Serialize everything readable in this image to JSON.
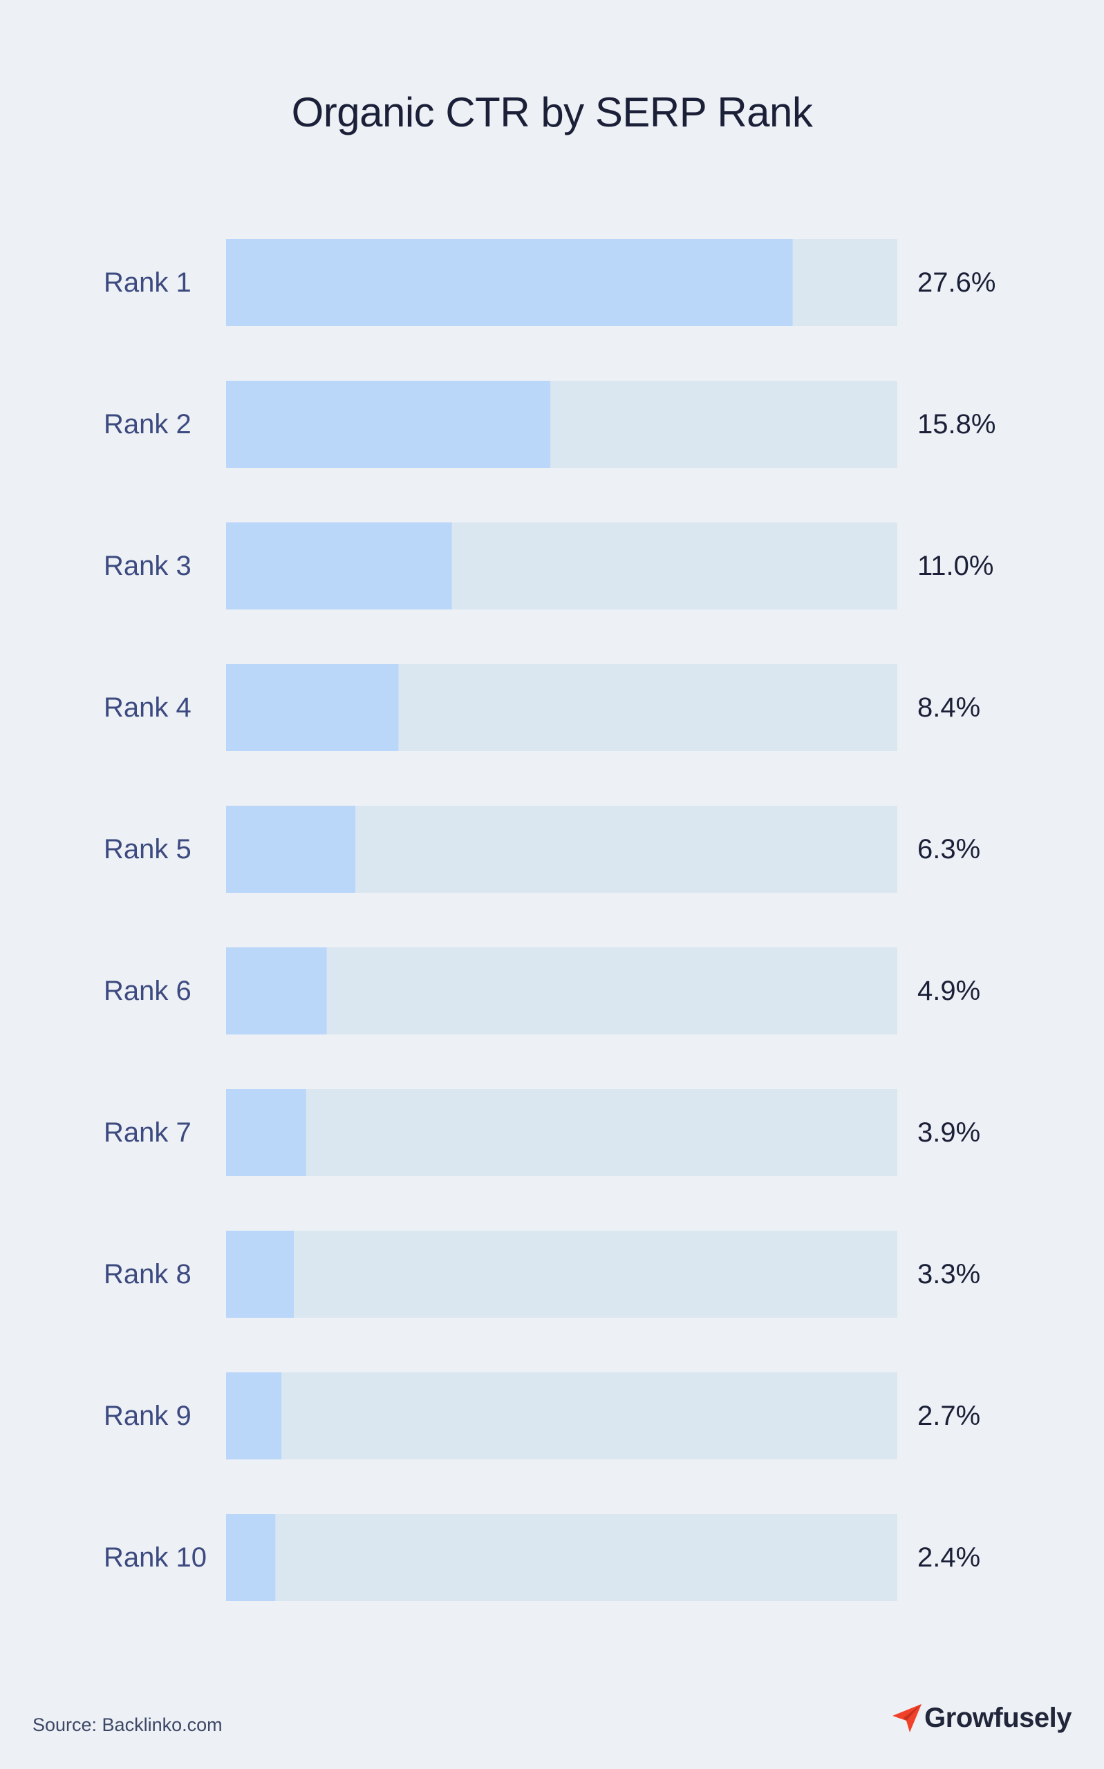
{
  "title": "Organic CTR by SERP Rank",
  "chart_data": {
    "type": "bar",
    "orientation": "horizontal",
    "title": "Organic CTR by SERP Rank",
    "categories": [
      "Rank 1",
      "Rank 2",
      "Rank 3",
      "Rank 4",
      "Rank 5",
      "Rank 6",
      "Rank 7",
      "Rank 8",
      "Rank 9",
      "Rank 10"
    ],
    "values": [
      27.6,
      15.8,
      11.0,
      8.4,
      6.3,
      4.9,
      3.9,
      3.3,
      2.7,
      2.4
    ],
    "value_labels": [
      "27.6%",
      "15.8%",
      "11.0%",
      "8.4%",
      "6.3%",
      "4.9%",
      "3.9%",
      "3.3%",
      "2.7%",
      "2.4%"
    ],
    "unit": "%",
    "xlabel": "",
    "ylabel": "",
    "grid": false,
    "legend": "none",
    "colors": {
      "bar": "#bad6f9",
      "track": "#dbe7f0",
      "label": "#3d4a80",
      "value": "#1b2038"
    }
  },
  "footer": {
    "source": "Source: Backlinko.com",
    "brand": "Growfusely",
    "brand_icon": "paper-plane-icon",
    "brand_color": "#f0412a"
  }
}
